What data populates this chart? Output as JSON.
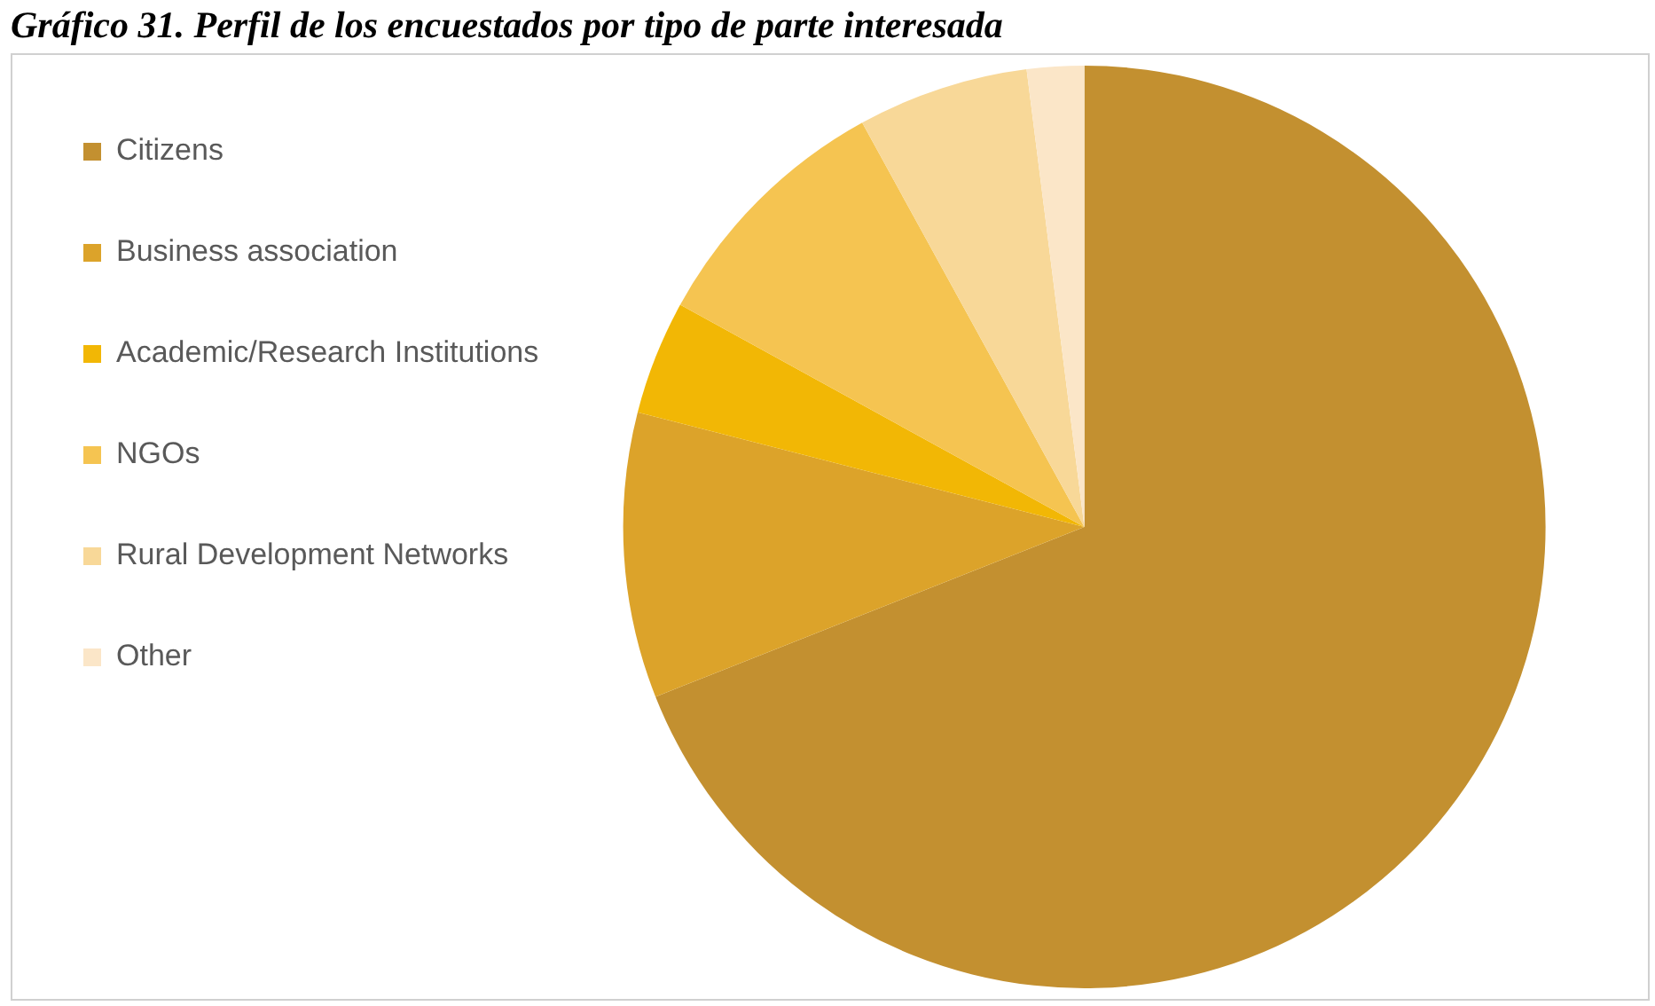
{
  "chart_data": {
    "type": "pie",
    "title": "Gráfico 31. Perfil de los encuestados por tipo de parte interesada",
    "categories": [
      "Citizens",
      "Business association",
      "Academic/Research Institutions",
      "NGOs",
      "Rural Development Networks",
      "Other"
    ],
    "values": [
      69,
      10,
      4,
      9,
      6,
      2
    ],
    "colors": [
      "#c39030",
      "#dca32a",
      "#f2b705",
      "#f5c451",
      "#f8d898",
      "#fbe6c8"
    ],
    "legend": "left"
  }
}
